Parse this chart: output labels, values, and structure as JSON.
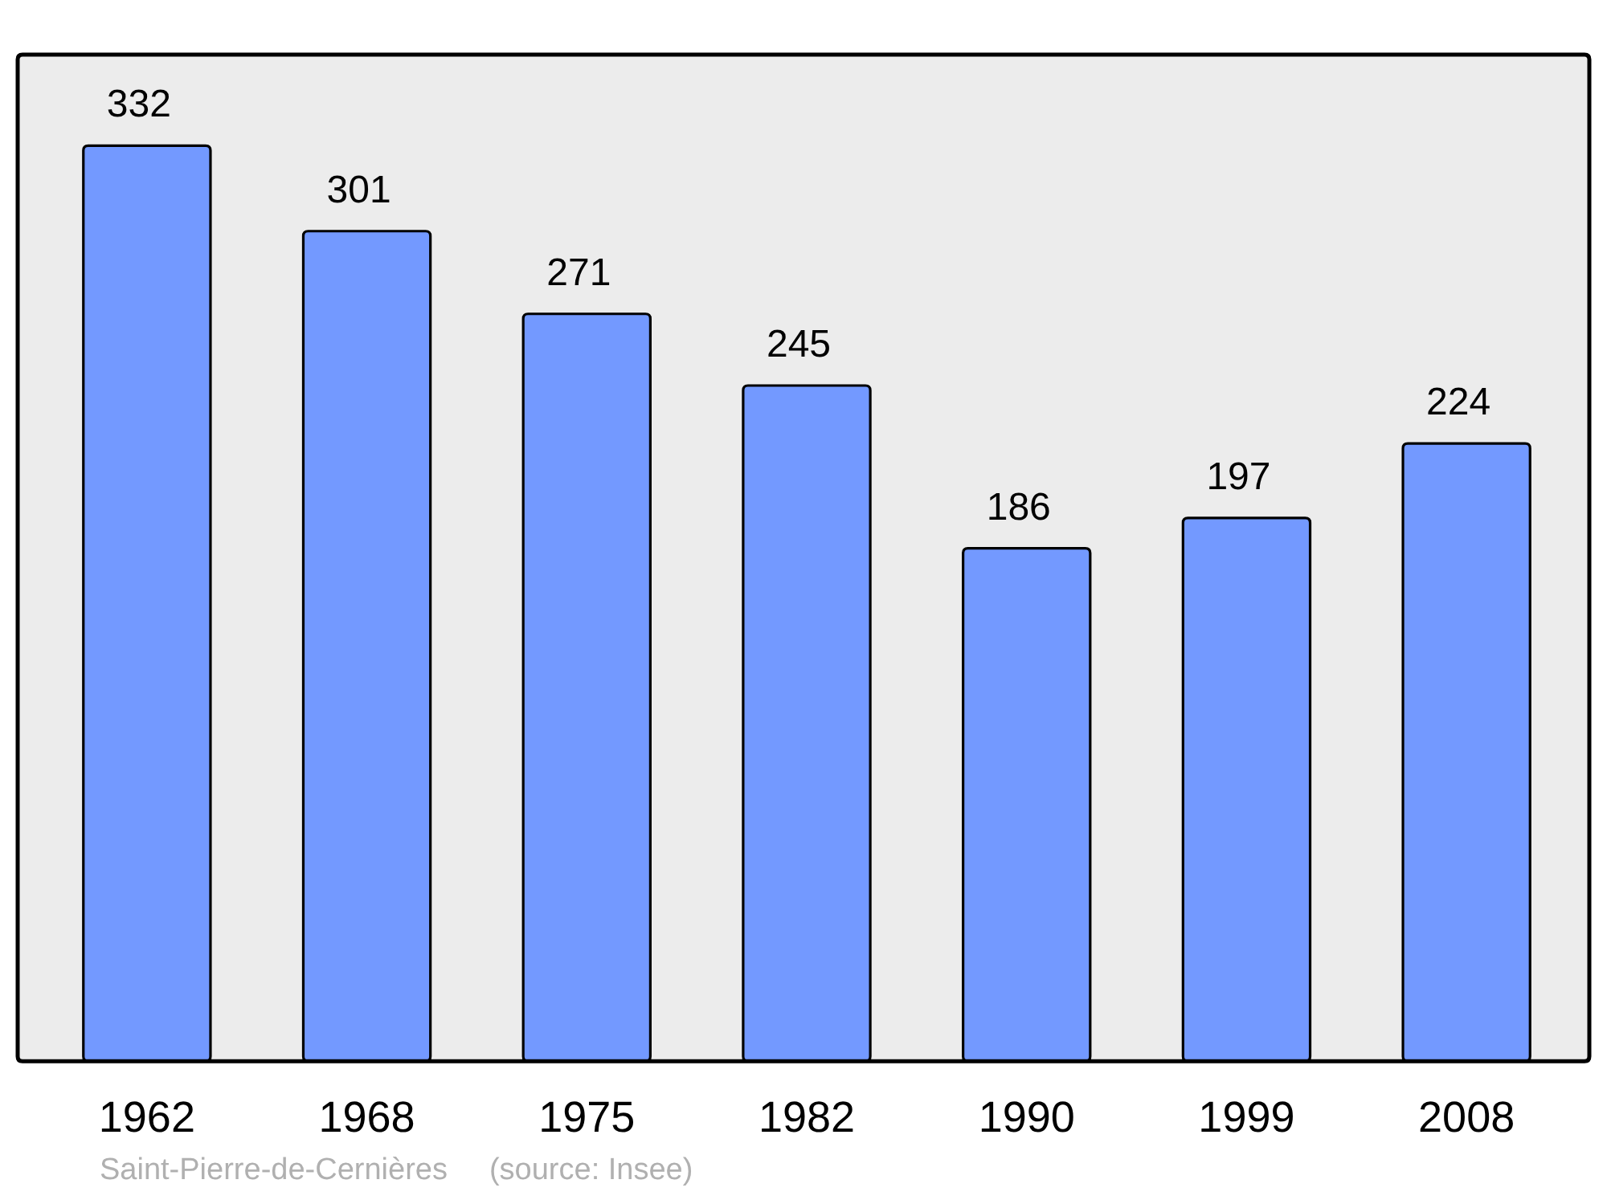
{
  "chart_data": {
    "type": "bar",
    "categories": [
      "1962",
      "1968",
      "1975",
      "1982",
      "1990",
      "1999",
      "2008"
    ],
    "values": [
      332,
      301,
      271,
      245,
      186,
      197,
      224
    ],
    "color": "#7399ff",
    "ylim": [
      0,
      365
    ],
    "data_labels": true,
    "tick_labels": "x",
    "annotations": [
      "Saint-Pierre-de-Cernières",
      "(source: Insee)"
    ]
  }
}
